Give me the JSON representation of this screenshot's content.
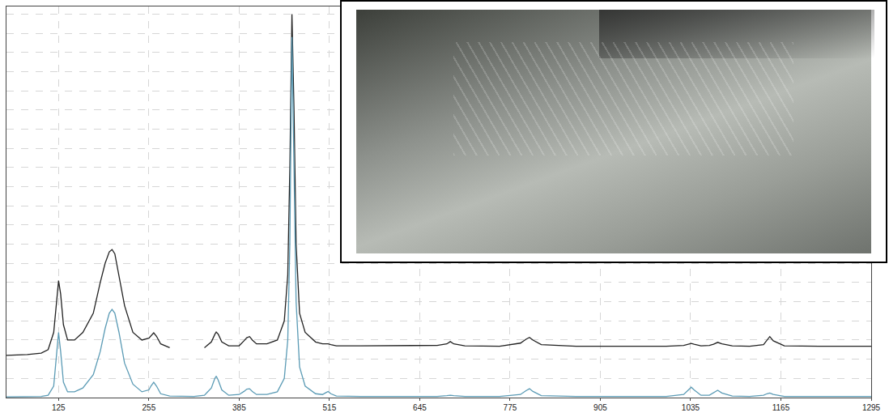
{
  "chart_data": {
    "type": "line",
    "x": [
      50,
      80,
      100,
      110,
      118,
      122,
      125,
      128,
      132,
      138,
      148,
      160,
      175,
      185,
      192,
      198,
      202,
      206,
      212,
      220,
      232,
      245,
      255,
      258,
      262,
      266,
      272,
      285,
      300,
      320,
      335,
      345,
      350,
      352,
      355,
      360,
      370,
      385,
      392,
      396,
      400,
      404,
      410,
      425,
      440,
      450,
      455,
      458,
      461,
      464,
      467,
      472,
      480,
      495,
      505,
      510,
      513,
      517,
      525,
      560,
      620,
      670,
      684,
      689,
      694,
      710,
      760,
      790,
      798,
      803,
      808,
      820,
      870,
      950,
      1000,
      1025,
      1032,
      1036,
      1040,
      1050,
      1062,
      1068,
      1074,
      1080,
      1095,
      1120,
      1140,
      1145,
      1149,
      1154,
      1170,
      1220,
      1295
    ],
    "series": [
      {
        "color": "#222222",
        "values": [
          11.0,
          11.2,
          11.6,
          12.5,
          17,
          25,
          30.5,
          27,
          19,
          15,
          15,
          17,
          22,
          30,
          35,
          38,
          38.6,
          37.5,
          32,
          24,
          17,
          15,
          15.5,
          16.2,
          16.9,
          16,
          14,
          13,
          null,
          null,
          13,
          14.5,
          16.5,
          17.1,
          16.5,
          14.5,
          13.5,
          13.5,
          14.8,
          15.6,
          15.9,
          15,
          14,
          14,
          15,
          20,
          32,
          60,
          100,
          75,
          40,
          22,
          17,
          14.5,
          14,
          14,
          14,
          13.8,
          13.5,
          13.5,
          13.5,
          13.6,
          14,
          14.6,
          14,
          13.5,
          13.4,
          14.2,
          15.2,
          15.7,
          15,
          13.8,
          13.4,
          13.4,
          13.4,
          13.6,
          13.9,
          14.1,
          13.9,
          13.5,
          13.6,
          13.9,
          14.4,
          14,
          13.5,
          13.4,
          13.8,
          15,
          15.9,
          14.8,
          13.5,
          13.4,
          13.4
        ]
      },
      {
        "color": "#5b9bb5",
        "values": [
          0.2,
          0.2,
          0.3,
          0.6,
          3,
          11,
          17,
          12,
          4,
          1.5,
          1.5,
          2.5,
          6,
          12,
          18,
          22,
          23,
          22,
          17,
          9,
          3.5,
          1.5,
          2,
          3,
          4,
          3,
          1,
          0.4,
          0.3,
          0.3,
          0.6,
          2.5,
          5,
          5.6,
          4.5,
          2,
          0.6,
          0.8,
          1.6,
          2.2,
          2.3,
          1.6,
          0.8,
          0.8,
          1.5,
          5,
          15,
          40,
          94,
          60,
          25,
          8,
          3,
          1,
          0.8,
          1.3,
          1.6,
          1,
          0.4,
          0.3,
          0.3,
          0.3,
          0.5,
          0.6,
          0.5,
          0.3,
          0.3,
          0.8,
          1.8,
          2.3,
          1.6,
          0.5,
          0.3,
          0.3,
          0.3,
          0.8,
          2,
          2.7,
          2,
          0.6,
          0.6,
          1.2,
          1.9,
          1.2,
          0.4,
          0.3,
          0.6,
          1,
          1.2,
          0.8,
          0.3,
          0.3,
          0.3
        ]
      }
    ],
    "xlim": [
      50,
      1295
    ],
    "xticks": [
      125,
      255,
      385,
      515,
      645,
      775,
      905,
      1035,
      1165,
      1295
    ],
    "ylim": [
      0,
      102
    ],
    "yticks": [
      0,
      5,
      10,
      15,
      20,
      25,
      30,
      35,
      40,
      45,
      50,
      55,
      60,
      65,
      70,
      75,
      80,
      85,
      90,
      95,
      100
    ],
    "grid": true,
    "tick_labels": "x"
  }
}
